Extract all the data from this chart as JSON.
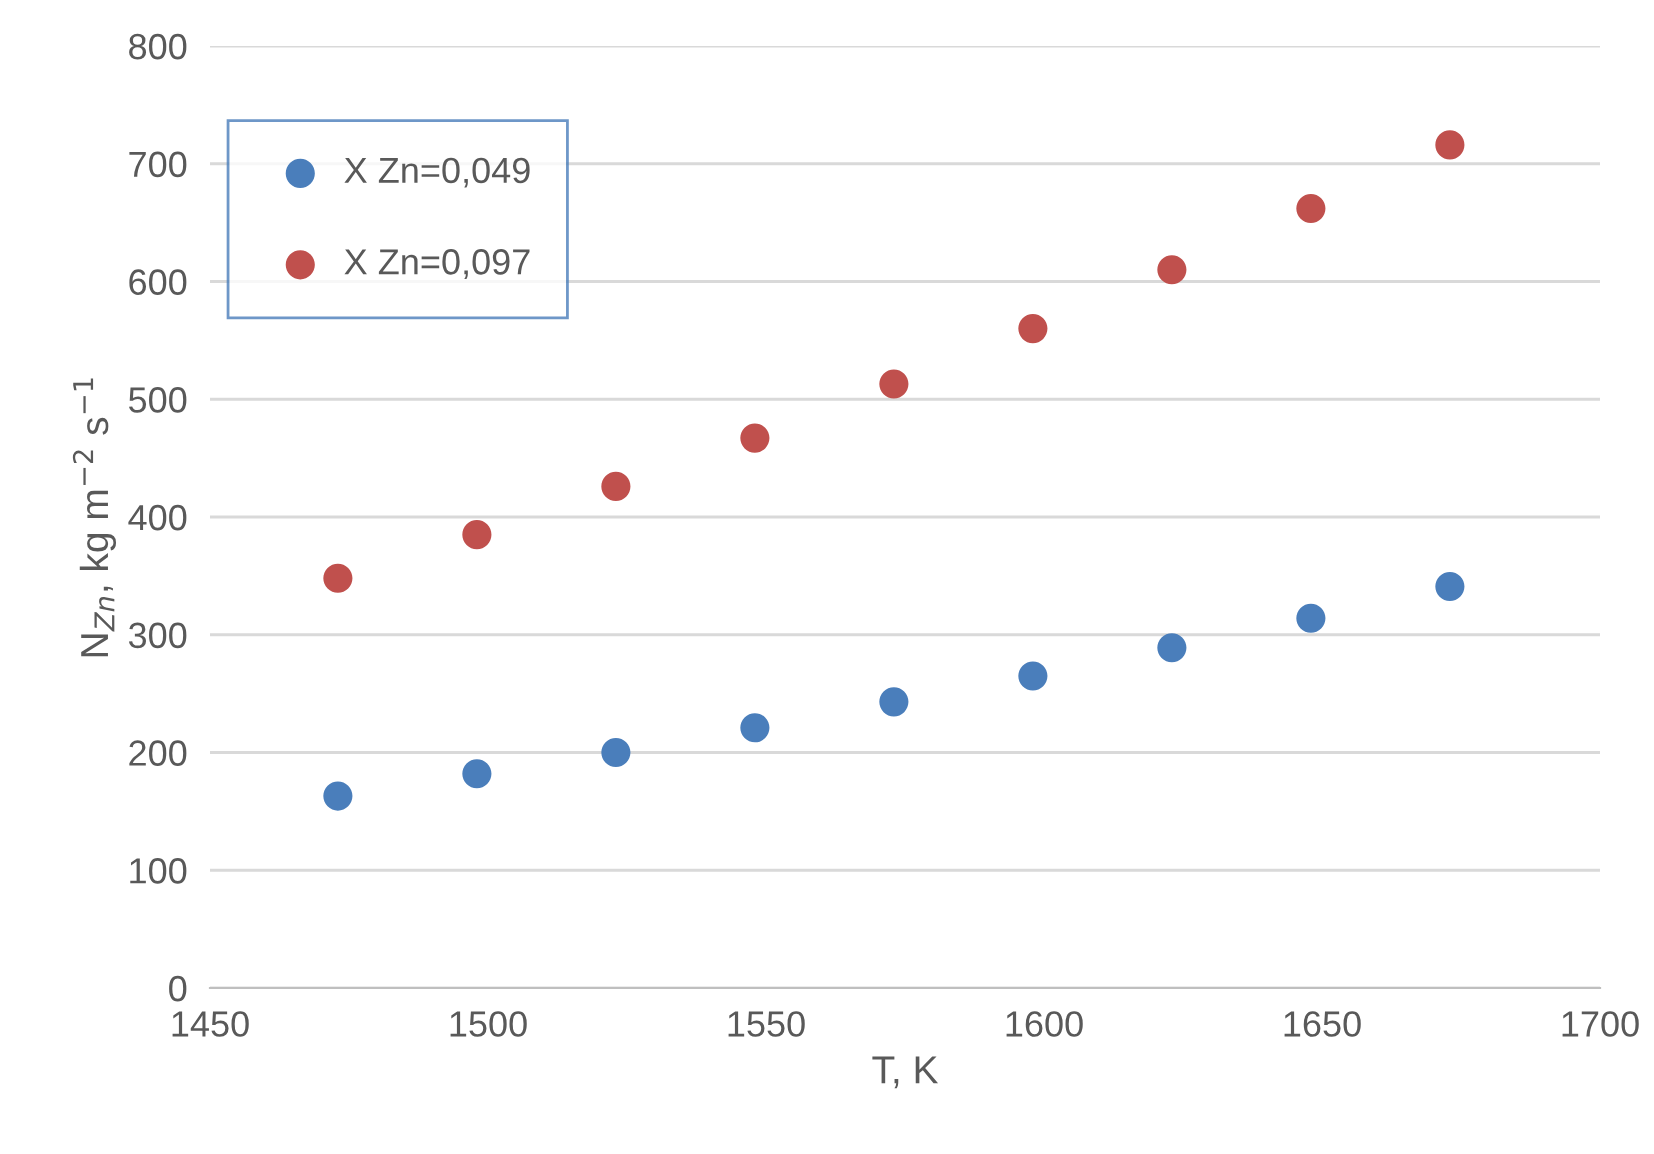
{
  "chart_data": {
    "type": "scatter",
    "xlabel": "T, K",
    "ylabel": "N$_{Zn}$, kg m$^{−2}$ s$^{−1}$",
    "x": [
      1473,
      1498,
      1523,
      1548,
      1573,
      1598,
      1623,
      1648,
      1673
    ],
    "series": [
      {
        "name": "X Zn=0,049",
        "color": "#4a7ebb",
        "values": [
          163,
          182,
          200,
          221,
          243,
          265,
          289,
          314,
          341
        ]
      },
      {
        "name": "X Zn=0,097",
        "color": "#c0504d",
        "values": [
          348,
          385,
          426,
          467,
          513,
          560,
          610,
          662,
          716
        ]
      }
    ],
    "xlim": [
      1450,
      1700
    ],
    "xticks": [
      1450,
      1500,
      1550,
      1600,
      1650,
      1700
    ],
    "ylim": [
      0,
      800
    ],
    "yticks": [
      0,
      100,
      200,
      300,
      400,
      500,
      600,
      700,
      800
    ],
    "grid": "y",
    "legend": "top left",
    "marker": "circle"
  }
}
